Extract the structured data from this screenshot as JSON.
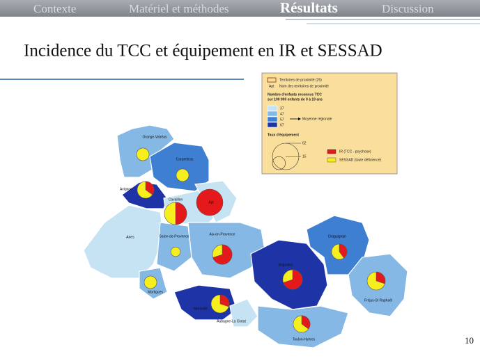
{
  "nav": [
    "Contexte",
    "Matériel et méthodes",
    "Résultats",
    "Discussion"
  ],
  "title": "Incidence du TCC et équipement en IR et SESSAD",
  "page_number": "10",
  "legend": {
    "territories": "Territoires de proximité (25)",
    "name_sample": "Apt",
    "name_desc": "Nom des territoires de proximité",
    "count_title_1": "Nombre d'enfants reconnus TCC",
    "count_title_2": "sur 100 000 enfants de 0 à 19 ans",
    "classes": [
      {
        "value": 37,
        "color": "#c5e3f3"
      },
      {
        "value": 47,
        "color": "#86b8e6"
      },
      {
        "value": 57,
        "color": "#3f7fd2"
      },
      {
        "value": 67,
        "color": "#1e34a6"
      }
    ],
    "regional_mean": "Moyenne régionale",
    "equipment_title": "Taux d'équipement",
    "circle_sizes": [
      62,
      15
    ],
    "ir": "IR (TCC - psychose)",
    "ir_color": "#e3191c",
    "sessad": "SESSAD (toute déficience)",
    "sessad_color": "#f7ee1e"
  },
  "map": {
    "territories": [
      {
        "name": "Orange-Valréas",
        "taux": 14,
        "ir_share": 0
      },
      {
        "name": "Carpentras",
        "taux": 14,
        "ir_share": 0
      },
      {
        "name": "Avignon",
        "taux": 25,
        "ir_share": 0.35
      },
      {
        "name": "Cavaillon",
        "taux": 44,
        "ir_share": 0.5
      },
      {
        "name": "Apt",
        "taux": 62,
        "ir_share": 1
      },
      {
        "name": "Arles",
        "taux": null,
        "ir_share": null
      },
      {
        "name": "Salon-de-Provence",
        "taux": 8,
        "ir_share": 0
      },
      {
        "name": "Aix-en-Provence",
        "taux": 34,
        "ir_share": 0.7
      },
      {
        "name": "Martigues",
        "taux": 14,
        "ir_share": 0
      },
      {
        "name": "Marseille",
        "taux": 29,
        "ir_share": 0.3
      },
      {
        "name": "Brignoles",
        "taux": 34,
        "ir_share": 0.7
      },
      {
        "name": "Draguignan",
        "taux": 21,
        "ir_share": 0.4
      },
      {
        "name": "Fréjus-St Raphaël",
        "taux": 29,
        "ir_share": 0.3
      },
      {
        "name": "Aubagne-La Ciotat",
        "taux": null,
        "ir_share": null
      },
      {
        "name": "Toulon-Hyères",
        "taux": 25,
        "ir_share": 0.35
      }
    ]
  }
}
